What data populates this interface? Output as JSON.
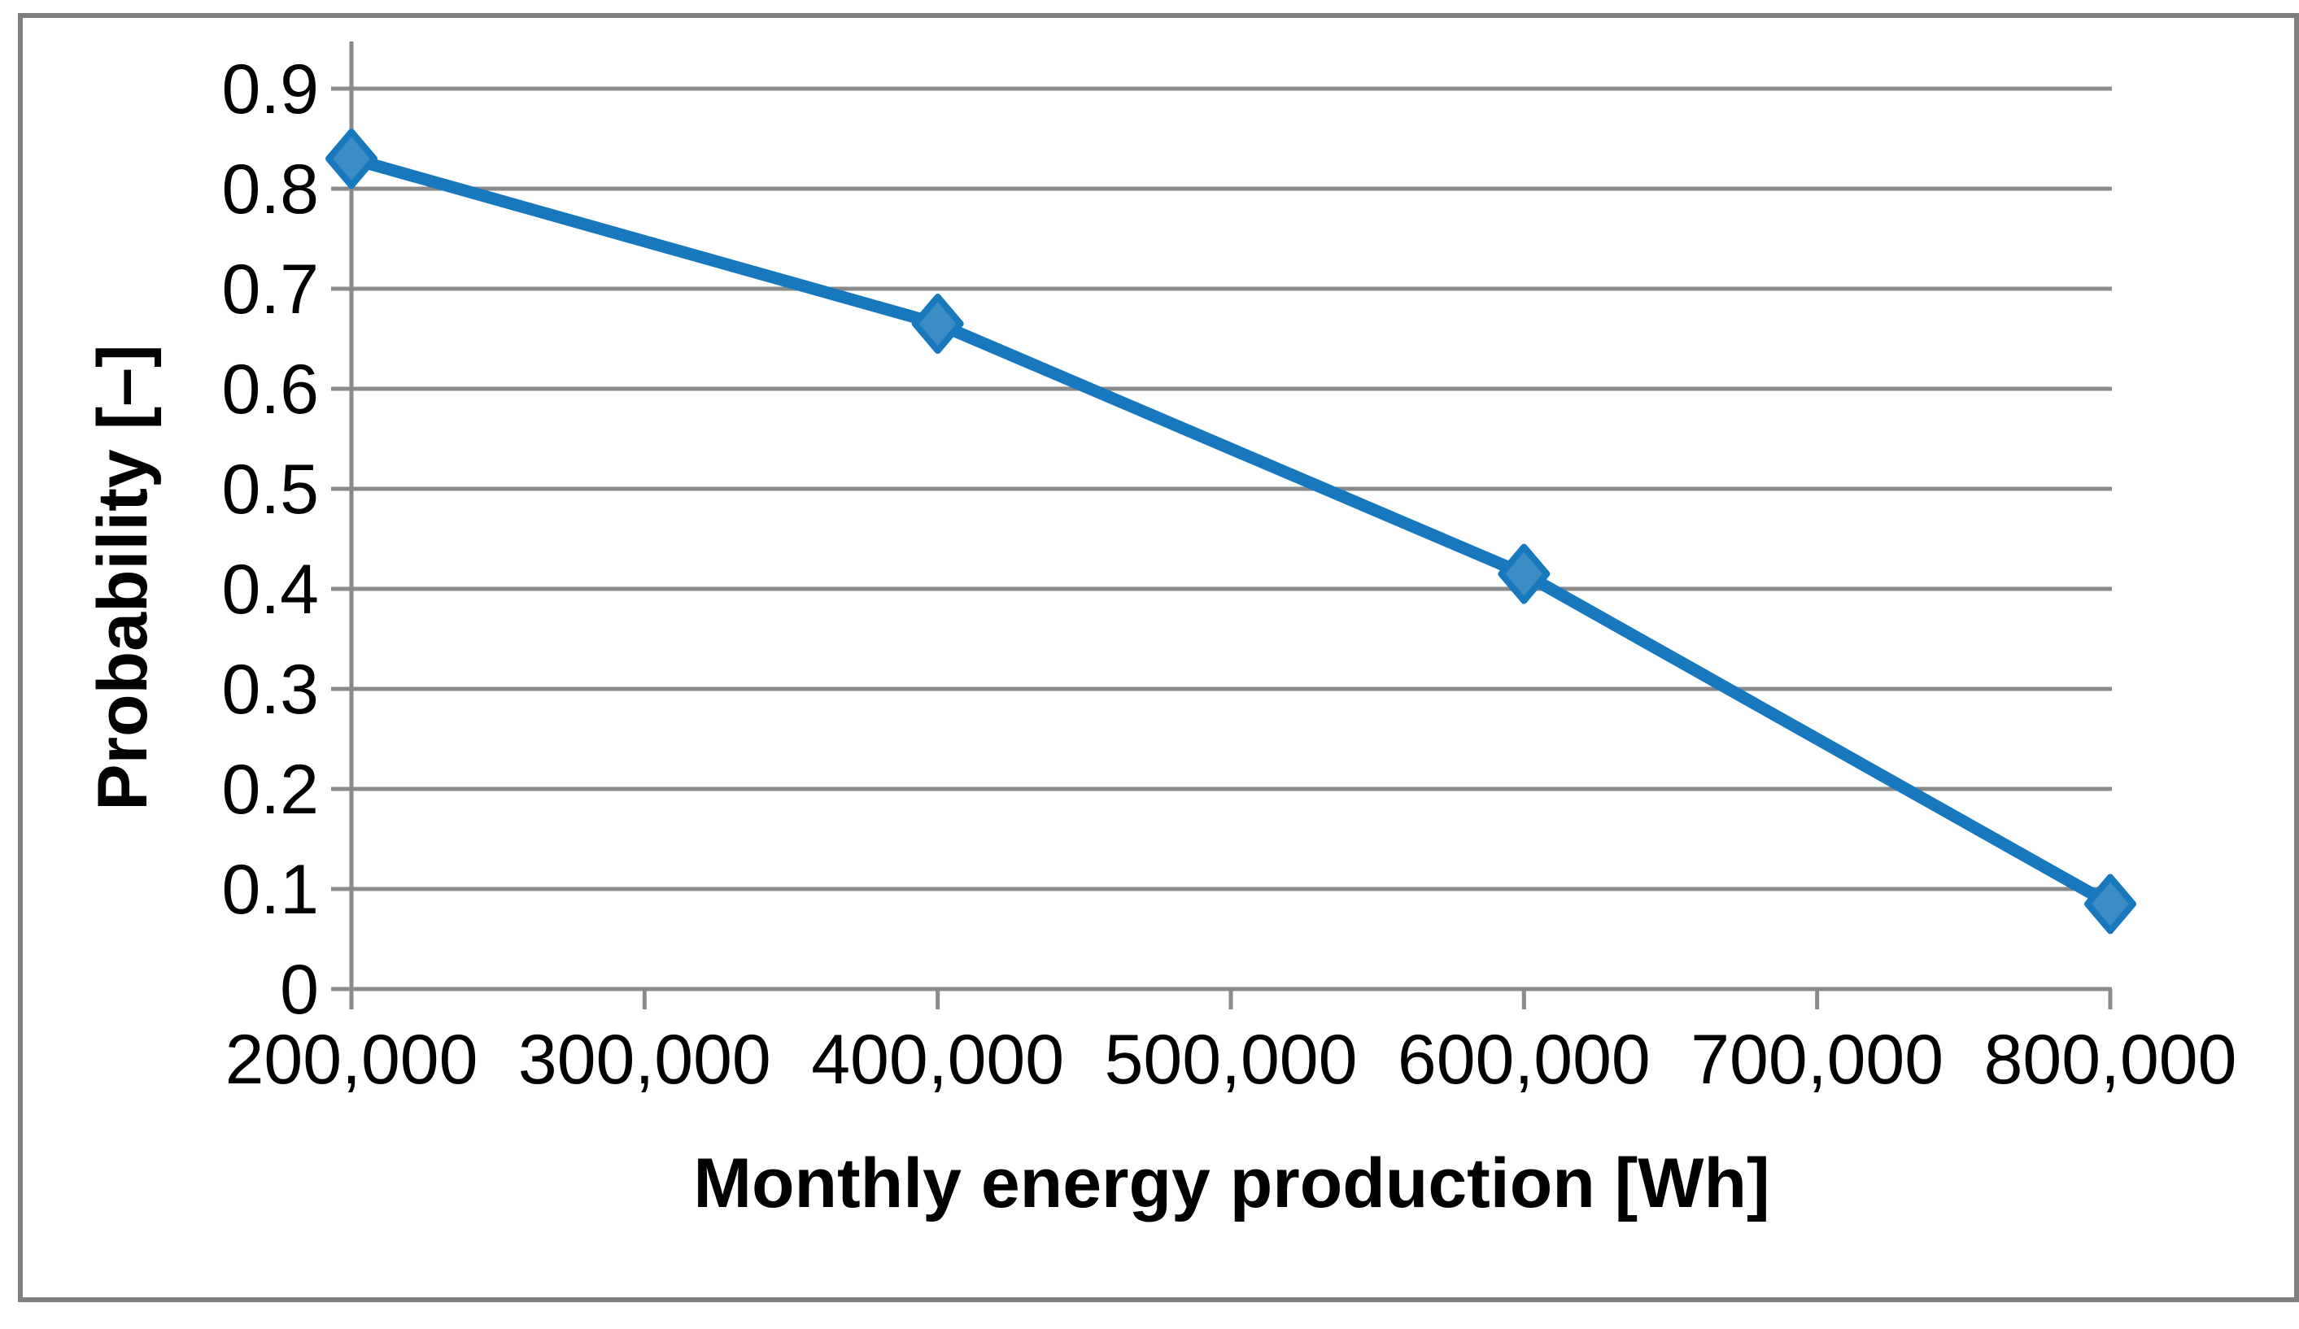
{
  "figure": {
    "background_color": "#ffffff",
    "frame_color": "#7f7f7f"
  },
  "chart_data": {
    "type": "line",
    "title": "",
    "xlabel": "Monthly energy production [Wh]",
    "ylabel": "Probability [–]",
    "x": [
      200000,
      400000,
      600000,
      800000
    ],
    "y": [
      0.83,
      0.665,
      0.415,
      0.085
    ],
    "xlim": [
      200000,
      800000
    ],
    "ylim": [
      0,
      0.9
    ],
    "grid": "horizontal",
    "legend_position": "none",
    "x_tick_values": [
      200000,
      300000,
      400000,
      500000,
      600000,
      700000,
      800000
    ],
    "x_tick_labels": [
      "200,000",
      "300,000",
      "400,000",
      "500,000",
      "600,000",
      "700,000",
      "800,000"
    ],
    "y_tick_values": [
      0,
      0.1,
      0.2,
      0.3,
      0.4,
      0.5,
      0.6,
      0.7,
      0.8,
      0.9
    ],
    "y_tick_labels": [
      "0",
      "0.1",
      "0.2",
      "0.3",
      "0.4",
      "0.5",
      "0.6",
      "0.7",
      "0.8",
      "0.9"
    ],
    "marker": "diamond",
    "colors": {
      "line": "#1878be",
      "marker_fill": "#3c8dc5",
      "grid": "#8a8a8a",
      "axis": "#8a8a8a",
      "text": "#000000"
    }
  }
}
